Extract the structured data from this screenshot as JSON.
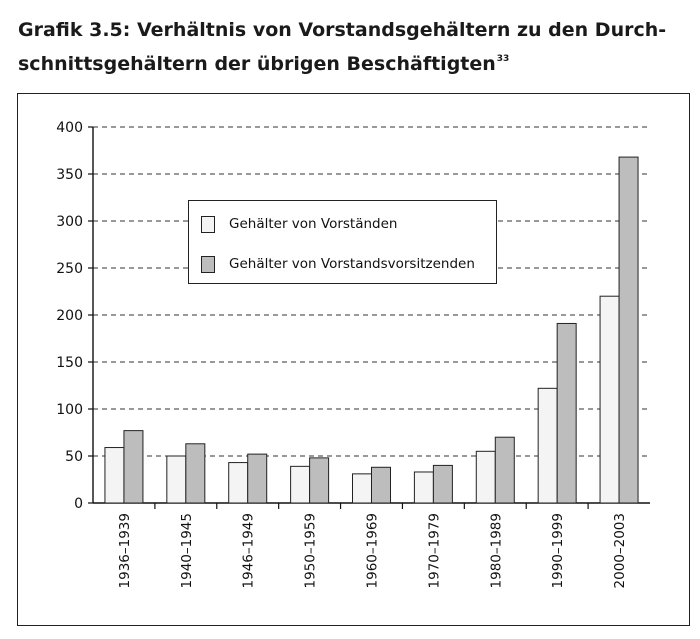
{
  "caption": {
    "line1": "Grafik 3.5: Verhältnis von Vorstandsgehältern zu den Durch-",
    "line2": "schnittsgehältern der übrigen Beschäftigten",
    "footnote": "33"
  },
  "chart_data": {
    "type": "bar",
    "categories": [
      "1936–1939",
      "1940–1945",
      "1946–1949",
      "1950–1959",
      "1960–1969",
      "1970–1979",
      "1980–1989",
      "1990–1999",
      "2000–2003"
    ],
    "series": [
      {
        "name": "Gehälter von Vorständen",
        "values": [
          59,
          50,
          43,
          39,
          31,
          33,
          55,
          122,
          220
        ],
        "color": "#f4f4f4"
      },
      {
        "name": "Gehälter von Vorstandsvorsitzenden",
        "values": [
          77,
          63,
          52,
          48,
          38,
          40,
          70,
          191,
          368
        ],
        "color": "#bdbdbd"
      }
    ],
    "ylim": [
      0,
      400
    ],
    "yticks": [
      "0",
      "50",
      "100",
      "150",
      "200",
      "250",
      "300",
      "350",
      "400"
    ],
    "grid": true,
    "legend_position": "upper-left-inside"
  }
}
